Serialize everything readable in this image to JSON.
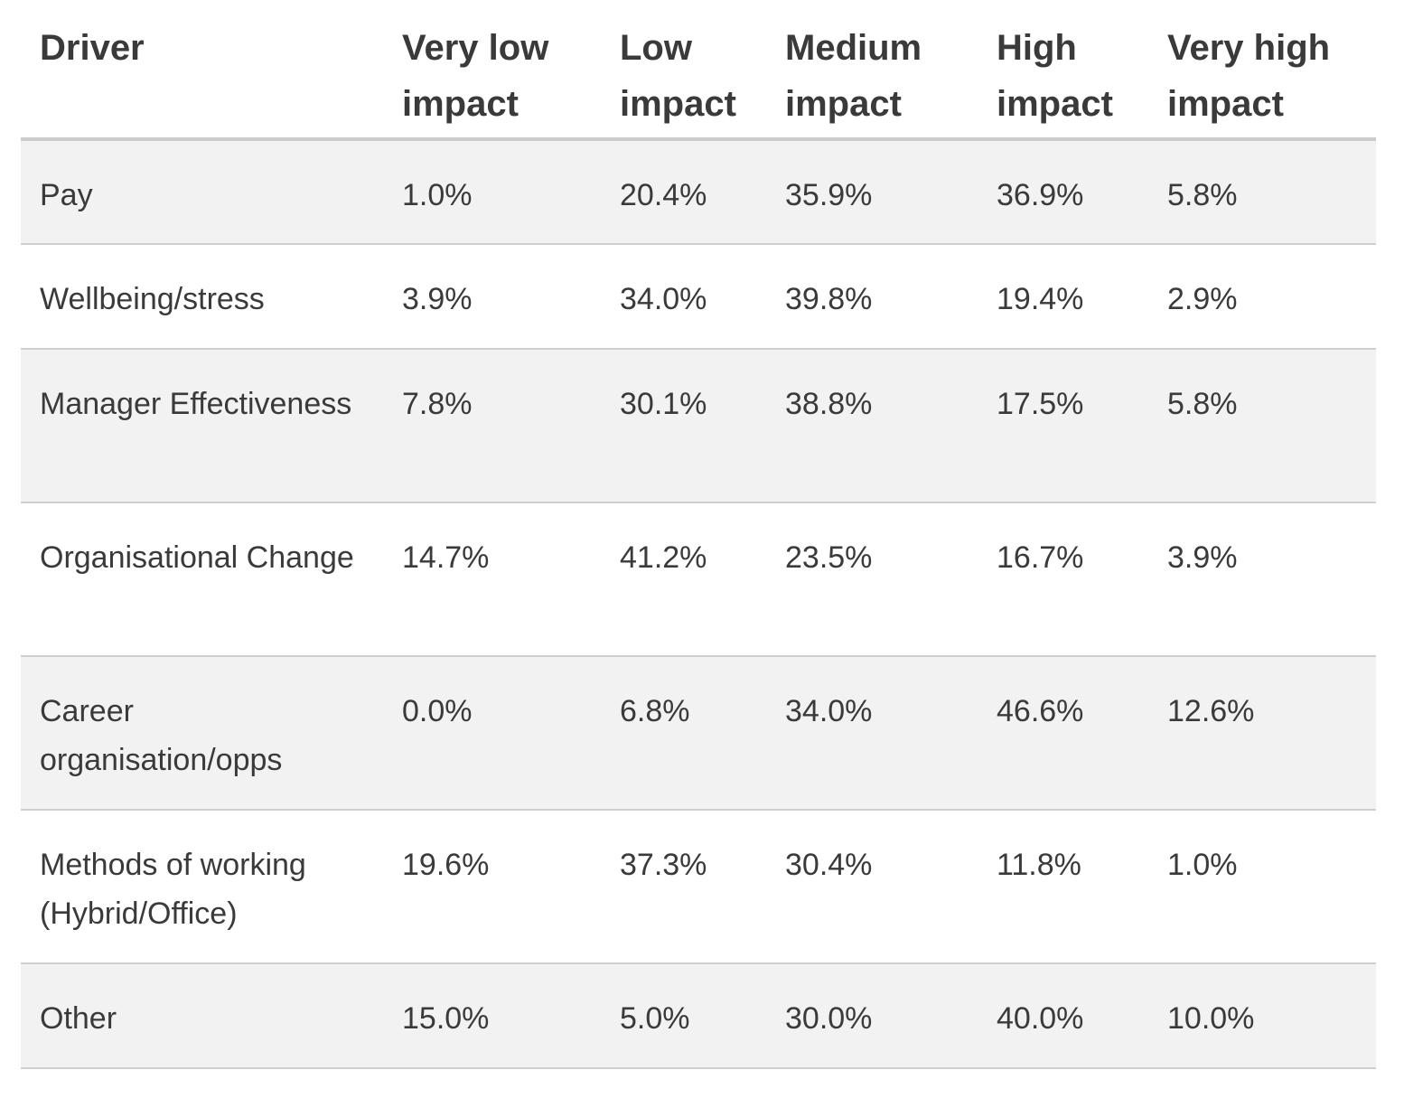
{
  "table": {
    "headers": [
      "Driver",
      "Very low impact",
      "Low impact",
      "Medium impact",
      "High impact",
      "Very high impact"
    ],
    "rows": [
      [
        "Pay",
        "1.0%",
        "20.4%",
        "35.9%",
        "36.9%",
        "5.8%"
      ],
      [
        "Wellbeing/stress",
        "3.9%",
        "34.0%",
        "39.8%",
        "19.4%",
        "2.9%"
      ],
      [
        "Manager Effectiveness",
        "7.8%",
        "30.1%",
        "38.8%",
        "17.5%",
        "5.8%"
      ],
      [
        "Organisational Change",
        "14.7%",
        "41.2%",
        "23.5%",
        "16.7%",
        "3.9%"
      ],
      [
        "Career organisation/opps",
        "0.0%",
        "6.8%",
        "34.0%",
        "46.6%",
        "12.6%"
      ],
      [
        "Methods of working (Hybrid/Office)",
        "19.6%",
        "37.3%",
        "30.4%",
        "11.8%",
        "1.0%"
      ],
      [
        "Other",
        "15.0%",
        "5.0%",
        "30.0%",
        "40.0%",
        "10.0%"
      ]
    ]
  }
}
